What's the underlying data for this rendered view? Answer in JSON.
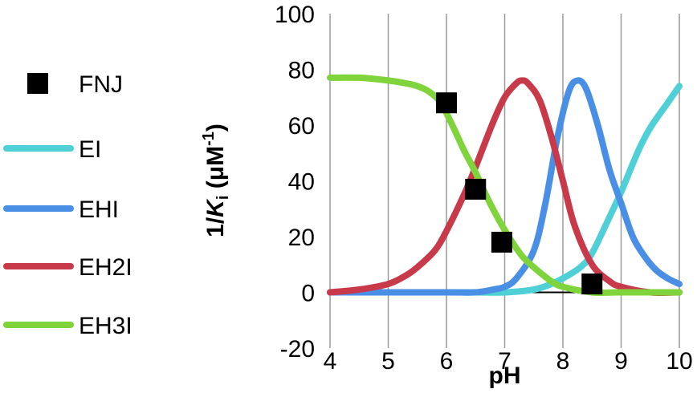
{
  "chart_data": {
    "type": "line",
    "title": "",
    "xlabel": "pH",
    "ylabel": {
      "prefix": "1/",
      "symbol": "K",
      "subscript": "i",
      "unit_open": " (μM",
      "superscript": "-1",
      "unit_close": ")"
    },
    "xlim": [
      4,
      10
    ],
    "ylim": [
      -20,
      100
    ],
    "x_ticks": [
      "4",
      "5",
      "6",
      "7",
      "8",
      "9",
      "10"
    ],
    "y_ticks": [
      "-20",
      "0",
      "20",
      "40",
      "60",
      "80",
      "100"
    ],
    "grid": {
      "vertical": true,
      "horizontal": false
    },
    "legend_position": "left",
    "series": [
      {
        "name": "FNJ",
        "kind": "scatter",
        "marker": "square",
        "color": "#000000",
        "x": [
          6.0,
          6.5,
          6.95,
          8.5
        ],
        "y": [
          68,
          37,
          18,
          3
        ]
      },
      {
        "name": "EI",
        "kind": "line",
        "color": "#4FCFD6",
        "x": [
          4.0,
          5.0,
          6.0,
          6.5,
          7.0,
          7.5,
          7.8,
          8.0,
          8.3,
          8.5,
          8.8,
          9.0,
          9.3,
          9.5,
          9.8,
          10.0
        ],
        "y": [
          0,
          0,
          0,
          0,
          0,
          1,
          3,
          5,
          9,
          14,
          27,
          36,
          51,
          59,
          68,
          74
        ]
      },
      {
        "name": "EHI",
        "kind": "line",
        "color": "#4A8FE6",
        "x": [
          4.0,
          6.0,
          6.5,
          6.8,
          7.0,
          7.2,
          7.5,
          7.7,
          7.9,
          8.1,
          8.25,
          8.4,
          8.6,
          8.8,
          9.0,
          9.2,
          9.4,
          9.6,
          9.8,
          10.0
        ],
        "y": [
          0,
          0,
          0,
          1,
          2,
          5,
          15,
          32,
          55,
          72,
          76,
          73,
          60,
          44,
          32,
          20,
          13,
          8,
          5,
          3
        ]
      },
      {
        "name": "EH2I",
        "kind": "line",
        "color": "#C8394A",
        "x": [
          4.0,
          4.5,
          5.0,
          5.3,
          5.5,
          5.8,
          6.0,
          6.3,
          6.5,
          6.8,
          7.0,
          7.2,
          7.3,
          7.4,
          7.6,
          7.8,
          8.0,
          8.2,
          8.5,
          8.8,
          9.0,
          9.5,
          10.0
        ],
        "y": [
          0,
          1,
          3,
          6,
          9,
          15,
          22,
          35,
          45,
          61,
          70,
          75,
          76,
          75,
          69,
          56,
          40,
          24,
          10,
          4,
          2,
          0,
          0
        ]
      },
      {
        "name": "EH3I",
        "kind": "line",
        "color": "#7ED43A",
        "x": [
          4.0,
          4.5,
          5.0,
          5.3,
          5.5,
          5.7,
          5.9,
          6.1,
          6.3,
          6.5,
          6.7,
          6.9,
          7.1,
          7.3,
          7.5,
          7.8,
          8.0,
          8.5,
          9.0,
          10.0
        ],
        "y": [
          77,
          77,
          76,
          75,
          74,
          72,
          68,
          60,
          51,
          43,
          34,
          26,
          19,
          13,
          9,
          4,
          2,
          0,
          0,
          0
        ]
      }
    ]
  }
}
